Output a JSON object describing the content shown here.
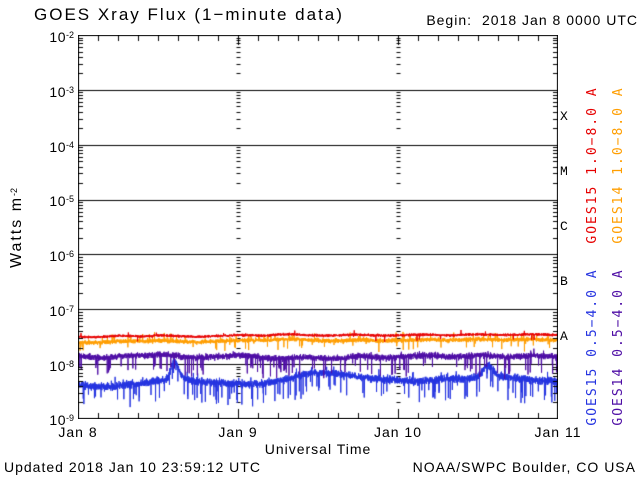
{
  "header": {
    "title": "GOES Xray Flux (1−minute data)",
    "begin_label": "Begin:",
    "begin_value": "2018 Jan 8 0000 UTC"
  },
  "axes": {
    "y_title_base": "Watts m",
    "y_title_exp": "-2",
    "y_ticks": [
      {
        "base": "10",
        "exp": "-2"
      },
      {
        "base": "10",
        "exp": "-3"
      },
      {
        "base": "10",
        "exp": "-4"
      },
      {
        "base": "10",
        "exp": "-5"
      },
      {
        "base": "10",
        "exp": "-6"
      },
      {
        "base": "10",
        "exp": "-7"
      },
      {
        "base": "10",
        "exp": "-8"
      },
      {
        "base": "10",
        "exp": "-9"
      }
    ],
    "x_ticks": [
      "Jan 8",
      "Jan 9",
      "Jan 10",
      "Jan 11"
    ],
    "x_title": "Universal Time"
  },
  "flare_class_letters": [
    "X",
    "M",
    "C",
    "B",
    "A"
  ],
  "legend": [
    {
      "label": "GOES15 1.0−8.0 A",
      "color": "#e60000"
    },
    {
      "label": "GOES14 1.0−8.0 A",
      "color": "#ff9e00"
    },
    {
      "label": "GOES15 0.5−4.0 A",
      "color": "#2433e0"
    },
    {
      "label": "GOES14 0.5−4.0 A",
      "color": "#4e0da5"
    }
  ],
  "footer": {
    "updated": "Updated 2018 Jan 10 23:59:12 UTC",
    "source": "NOAA/SWPC Boulder, CO USA"
  },
  "chart_data": {
    "type": "line",
    "title": "GOES Xray Flux (1−minute data)",
    "begin": "2018 Jan 8 0000 UTC",
    "updated": "2018 Jan 10 23:59:12 UTC",
    "station": "NOAA/SWPC Boulder, CO USA",
    "xlabel": "Universal Time",
    "ylabel": "Watts m^-2",
    "y_scale": "log",
    "ylim": [
      1e-09,
      0.01
    ],
    "x_tick_labels": [
      "Jan 8",
      "Jan 9",
      "Jan 10",
      "Jan 11"
    ],
    "x_span_hours": 72,
    "minor_tick_hours": 3,
    "grid": {
      "horizontal_decade_lines": true,
      "vertical_day_boundary_tick_columns": true
    },
    "flare_classes": [
      {
        "label": "X",
        "flux_range": [
          0.0001,
          0.001
        ]
      },
      {
        "label": "M",
        "flux_range": [
          1e-05,
          0.0001
        ]
      },
      {
        "label": "C",
        "flux_range": [
          1e-06,
          1e-05
        ]
      },
      {
        "label": "B",
        "flux_range": [
          1e-07,
          1e-06
        ]
      },
      {
        "label": "A",
        "flux_range": [
          1e-08,
          1e-07
        ]
      }
    ],
    "x_hours": [
      0,
      2,
      4,
      6,
      8,
      10,
      12,
      14,
      16,
      18,
      20,
      22,
      24,
      26,
      28,
      30,
      32,
      34,
      36,
      38,
      40,
      42,
      44,
      46,
      48,
      50,
      52,
      54,
      56,
      58,
      60,
      62,
      64,
      66,
      68,
      70,
      72
    ],
    "series": [
      {
        "id": "goes15_long",
        "name": "GOES15 1.0−8.0 A",
        "color": "#e60000",
        "seed": 11,
        "values": [
          3.2e-08,
          3.1e-08,
          3.15e-08,
          3.3e-08,
          3.25e-08,
          3.2e-08,
          3.35e-08,
          3.3e-08,
          3.2e-08,
          3.15e-08,
          3.25e-08,
          3.3e-08,
          3.4e-08,
          3.35e-08,
          3.3e-08,
          3.45e-08,
          3.5e-08,
          3.4e-08,
          3.35e-08,
          3.3e-08,
          3.4e-08,
          3.45e-08,
          3.35e-08,
          3.3e-08,
          3.35e-08,
          3.4e-08,
          3.45e-08,
          3.4e-08,
          3.35e-08,
          3.45e-08,
          3.5e-08,
          3.45e-08,
          3.4e-08,
          3.45e-08,
          3.5e-08,
          3.45e-08,
          3.4e-08
        ],
        "noise": {
          "amp": 0.035,
          "spike_prob": 0.004,
          "spike_depth": 0.12,
          "up_prob": 0.003,
          "up_depth": 0.08
        }
      },
      {
        "id": "goes14_long",
        "name": "GOES14 1.0−8.0 A",
        "color": "#ff9e00",
        "seed": 22,
        "values": [
          2.5e-08,
          2.45e-08,
          2.5e-08,
          2.6e-08,
          2.65e-08,
          2.6e-08,
          2.7e-08,
          2.65e-08,
          2.55e-08,
          2.5e-08,
          2.6e-08,
          2.65e-08,
          2.7e-08,
          2.75e-08,
          2.7e-08,
          2.8e-08,
          2.85e-08,
          2.75e-08,
          2.7e-08,
          2.65e-08,
          2.7e-08,
          2.75e-08,
          2.7e-08,
          2.65e-08,
          2.7e-08,
          2.75e-08,
          2.8e-08,
          2.75e-08,
          2.7e-08,
          2.8e-08,
          2.85e-08,
          2.8e-08,
          2.75e-08,
          2.8e-08,
          2.85e-08,
          2.8e-08,
          2.75e-08
        ],
        "noise": {
          "amp": 0.055,
          "spike_prob": 0.01,
          "spike_depth": 0.2,
          "up_prob": 0.02,
          "up_depth": 0.13
        }
      },
      {
        "id": "goes14_short",
        "name": "GOES14 0.5−4.0 A",
        "color": "#4e0da5",
        "seed": 33,
        "values": [
          1.4e-08,
          1.35e-08,
          1.3e-08,
          1.4e-08,
          1.45e-08,
          1.4e-08,
          1.5e-08,
          1.45e-08,
          1.35e-08,
          1.3e-08,
          1.35e-08,
          1.4e-08,
          1.45e-08,
          1.4e-08,
          1.3e-08,
          1.25e-08,
          1.3e-08,
          1.35e-08,
          1.3e-08,
          1.25e-08,
          1.3e-08,
          1.4e-08,
          1.35e-08,
          1.3e-08,
          1.35e-08,
          1.4e-08,
          1.45e-08,
          1.4e-08,
          1.35e-08,
          1.4e-08,
          1.45e-08,
          1.4e-08,
          1.35e-08,
          1.4e-08,
          1.45e-08,
          1.4e-08,
          1.35e-08
        ],
        "noise": {
          "amp": 0.08,
          "spike_prob": 0.025,
          "spike_depth": 0.35,
          "up_prob": 0.008,
          "up_depth": 0.1
        }
      },
      {
        "id": "goes15_short",
        "name": "GOES15 0.5−4.0 A",
        "color": "#2433e0",
        "seed": 44,
        "values": [
          4.2e-09,
          4e-09,
          3.8e-09,
          4e-09,
          4.3e-09,
          4.5e-09,
          5e-09,
          5.2e-09,
          5.5e-09,
          4.8e-09,
          4.6e-09,
          4.5e-09,
          4.4e-09,
          4.3e-09,
          4.5e-09,
          5e-09,
          5.5e-09,
          6.5e-09,
          7e-09,
          6.8e-09,
          6.5e-09,
          6e-09,
          5.5e-09,
          5.2e-09,
          5e-09,
          4.8e-09,
          5e-09,
          5.2e-09,
          5.5e-09,
          5.3e-09,
          5.8e-09,
          6.2e-09,
          5.8e-09,
          5.5e-09,
          5.2e-09,
          5e-09,
          4.8e-09
        ],
        "noise": {
          "amp": 0.1,
          "spike_prob": 0.03,
          "spike_depth": 0.4,
          "up_prob": 0.01,
          "up_depth": 0.15
        },
        "events": [
          {
            "hour": 14.5,
            "peak_flux": 1.05e-08,
            "amp_decades": 0.33,
            "sigma_hours": 0.55
          },
          {
            "hour": 61.5,
            "peak_flux": 9e-09,
            "amp_decades": 0.2,
            "sigma_hours": 0.7
          }
        ]
      }
    ],
    "draw_order": [
      "goes15_short",
      "goes14_short",
      "goes14_long",
      "goes15_long"
    ]
  }
}
